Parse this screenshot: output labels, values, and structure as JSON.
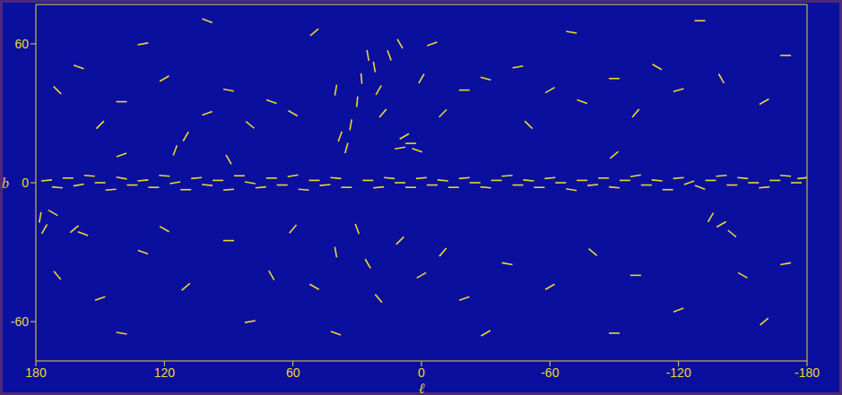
{
  "chart_data": {
    "type": "scatter",
    "x_label": "ℓ",
    "y_label": "b",
    "color": "#e8d830",
    "marker": "segment",
    "grid": false,
    "xlim": [
      180,
      -180
    ],
    "xticks": [
      180,
      120,
      60,
      0,
      -60,
      -120,
      -180
    ],
    "ylim": [
      -77,
      77
    ],
    "yticks": [
      -60,
      0,
      60
    ],
    "points": [
      {
        "x": 175,
        "y": 1,
        "angle": 5
      },
      {
        "x": 170,
        "y": -2,
        "angle": -5
      },
      {
        "x": 165,
        "y": 2,
        "angle": 0
      },
      {
        "x": 160,
        "y": -1,
        "angle": 10
      },
      {
        "x": 155,
        "y": 3,
        "angle": -5
      },
      {
        "x": 150,
        "y": 0,
        "angle": 0
      },
      {
        "x": 145,
        "y": -3,
        "angle": 5
      },
      {
        "x": 140,
        "y": 2,
        "angle": -10
      },
      {
        "x": 135,
        "y": -1,
        "angle": 0
      },
      {
        "x": 130,
        "y": 1,
        "angle": 5
      },
      {
        "x": 125,
        "y": -2,
        "angle": 0
      },
      {
        "x": 120,
        "y": 3,
        "angle": -5
      },
      {
        "x": 115,
        "y": 0,
        "angle": 10
      },
      {
        "x": 110,
        "y": -3,
        "angle": 0
      },
      {
        "x": 105,
        "y": 2,
        "angle": 5
      },
      {
        "x": 100,
        "y": -1,
        "angle": -5
      },
      {
        "x": 95,
        "y": 1,
        "angle": 0
      },
      {
        "x": 90,
        "y": -3,
        "angle": 5
      },
      {
        "x": 85,
        "y": 3,
        "angle": 0
      },
      {
        "x": 80,
        "y": 0,
        "angle": -10
      },
      {
        "x": 75,
        "y": -2,
        "angle": 5
      },
      {
        "x": 70,
        "y": 2,
        "angle": 0
      },
      {
        "x": 65,
        "y": -1,
        "angle": 0
      },
      {
        "x": 60,
        "y": 3,
        "angle": 10
      },
      {
        "x": 55,
        "y": -3,
        "angle": -5
      },
      {
        "x": 50,
        "y": 1,
        "angle": 0
      },
      {
        "x": 45,
        "y": -1,
        "angle": 5
      },
      {
        "x": 40,
        "y": 2,
        "angle": -5
      },
      {
        "x": 35,
        "y": -2,
        "angle": 0
      },
      {
        "x": 25,
        "y": 1,
        "angle": 0
      },
      {
        "x": 20,
        "y": -2,
        "angle": 5
      },
      {
        "x": 15,
        "y": 2,
        "angle": -5
      },
      {
        "x": 10,
        "y": 0,
        "angle": 0
      },
      {
        "x": 5,
        "y": -2,
        "angle": 0
      },
      {
        "x": 0,
        "y": 2,
        "angle": 5
      },
      {
        "x": -5,
        "y": -1,
        "angle": 0
      },
      {
        "x": -10,
        "y": 1,
        "angle": -5
      },
      {
        "x": -15,
        "y": -2,
        "angle": 0
      },
      {
        "x": -20,
        "y": 2,
        "angle": 5
      },
      {
        "x": -25,
        "y": 0,
        "angle": 0
      },
      {
        "x": -30,
        "y": -2,
        "angle": -5
      },
      {
        "x": -35,
        "y": 1,
        "angle": 0
      },
      {
        "x": -40,
        "y": 3,
        "angle": 5
      },
      {
        "x": -45,
        "y": -1,
        "angle": 0
      },
      {
        "x": -50,
        "y": 1,
        "angle": -5
      },
      {
        "x": -55,
        "y": -2,
        "angle": 0
      },
      {
        "x": -60,
        "y": 2,
        "angle": 5
      },
      {
        "x": -65,
        "y": 0,
        "angle": 0
      },
      {
        "x": -70,
        "y": -3,
        "angle": -10
      },
      {
        "x": -75,
        "y": 1,
        "angle": 0
      },
      {
        "x": -80,
        "y": -1,
        "angle": 5
      },
      {
        "x": -85,
        "y": 2,
        "angle": 0
      },
      {
        "x": -90,
        "y": -2,
        "angle": -5
      },
      {
        "x": -95,
        "y": 1,
        "angle": 0
      },
      {
        "x": -100,
        "y": 3,
        "angle": 10
      },
      {
        "x": -105,
        "y": -1,
        "angle": 0
      },
      {
        "x": -110,
        "y": 1,
        "angle": -5
      },
      {
        "x": -115,
        "y": -3,
        "angle": 0
      },
      {
        "x": -120,
        "y": 2,
        "angle": 5
      },
      {
        "x": -125,
        "y": 0,
        "angle": 20
      },
      {
        "x": -130,
        "y": -2,
        "angle": -20
      },
      {
        "x": -135,
        "y": 1,
        "angle": 0
      },
      {
        "x": -140,
        "y": 3,
        "angle": 5
      },
      {
        "x": -145,
        "y": -1,
        "angle": 0
      },
      {
        "x": -150,
        "y": 2,
        "angle": -5
      },
      {
        "x": -155,
        "y": 0,
        "angle": 0
      },
      {
        "x": -160,
        "y": -2,
        "angle": 5
      },
      {
        "x": -165,
        "y": 1,
        "angle": 0
      },
      {
        "x": -170,
        "y": 3,
        "angle": -5
      },
      {
        "x": -175,
        "y": 0,
        "angle": 0
      },
      {
        "x": -178,
        "y": 2,
        "angle": 5
      },
      {
        "x": 178,
        "y": -15,
        "angle": 80
      },
      {
        "x": 176,
        "y": -20,
        "angle": 60
      },
      {
        "x": 172,
        "y": -13,
        "angle": -30
      },
      {
        "x": 162,
        "y": -20,
        "angle": 40
      },
      {
        "x": 158,
        "y": -22,
        "angle": -20
      },
      {
        "x": -140,
        "y": -18,
        "angle": 30
      },
      {
        "x": -145,
        "y": -22,
        "angle": -40
      },
      {
        "x": -135,
        "y": -15,
        "angle": 60
      },
      {
        "x": 5,
        "y": 17,
        "angle": 0
      },
      {
        "x": 8,
        "y": 20,
        "angle": 30
      },
      {
        "x": 2,
        "y": 14,
        "angle": -20
      },
      {
        "x": 10,
        "y": 15,
        "angle": 10
      },
      {
        "x": 90,
        "y": 10,
        "angle": -60
      },
      {
        "x": 115,
        "y": 14,
        "angle": 70
      },
      {
        "x": 140,
        "y": 12,
        "angle": 20
      },
      {
        "x": -90,
        "y": 12,
        "angle": 40
      },
      {
        "x": 35,
        "y": 15,
        "angle": 75
      },
      {
        "x": 33,
        "y": 25,
        "angle": 80
      },
      {
        "x": 30,
        "y": 35,
        "angle": 85
      },
      {
        "x": 28,
        "y": 45,
        "angle": 95
      },
      {
        "x": 25,
        "y": 55,
        "angle": 100
      },
      {
        "x": 38,
        "y": 20,
        "angle": 70
      },
      {
        "x": 20,
        "y": 40,
        "angle": 60
      },
      {
        "x": 18,
        "y": 30,
        "angle": 50
      },
      {
        "x": 40,
        "y": 40,
        "angle": 80
      },
      {
        "x": 22,
        "y": 50,
        "angle": 100
      },
      {
        "x": 15,
        "y": 55,
        "angle": 110
      },
      {
        "x": 10,
        "y": 60,
        "angle": -60
      },
      {
        "x": 60,
        "y": 30,
        "angle": -30
      },
      {
        "x": 70,
        "y": 35,
        "angle": -20
      },
      {
        "x": 80,
        "y": 25,
        "angle": -40
      },
      {
        "x": 90,
        "y": 40,
        "angle": -10
      },
      {
        "x": 100,
        "y": 30,
        "angle": 20
      },
      {
        "x": 120,
        "y": 45,
        "angle": 30
      },
      {
        "x": 140,
        "y": 35,
        "angle": 0
      },
      {
        "x": 160,
        "y": 50,
        "angle": -20
      },
      {
        "x": 150,
        "y": 25,
        "angle": 45
      },
      {
        "x": 110,
        "y": 20,
        "angle": 60
      },
      {
        "x": 130,
        "y": 60,
        "angle": 10
      },
      {
        "x": 170,
        "y": 40,
        "angle": -45
      },
      {
        "x": -20,
        "y": 40,
        "angle": 0
      },
      {
        "x": -30,
        "y": 45,
        "angle": -15
      },
      {
        "x": -45,
        "y": 50,
        "angle": 10
      },
      {
        "x": -60,
        "y": 40,
        "angle": 30
      },
      {
        "x": -75,
        "y": 35,
        "angle": -20
      },
      {
        "x": -90,
        "y": 45,
        "angle": 0
      },
      {
        "x": -100,
        "y": 30,
        "angle": 50
      },
      {
        "x": -110,
        "y": 50,
        "angle": -30
      },
      {
        "x": -120,
        "y": 40,
        "angle": 15
      },
      {
        "x": -140,
        "y": 45,
        "angle": -60
      },
      {
        "x": -160,
        "y": 35,
        "angle": 30
      },
      {
        "x": -170,
        "y": 55,
        "angle": 0
      },
      {
        "x": -50,
        "y": 25,
        "angle": -45
      },
      {
        "x": -10,
        "y": 30,
        "angle": 45
      },
      {
        "x": -5,
        "y": 60,
        "angle": 20
      },
      {
        "x": -70,
        "y": 65,
        "angle": -10
      },
      {
        "x": 50,
        "y": 65,
        "angle": 40
      },
      {
        "x": -130,
        "y": 70,
        "angle": 0
      },
      {
        "x": 100,
        "y": 70,
        "angle": -20
      },
      {
        "x": 0,
        "y": 45,
        "angle": 60
      },
      {
        "x": 30,
        "y": -20,
        "angle": -70
      },
      {
        "x": 25,
        "y": -35,
        "angle": -60
      },
      {
        "x": 20,
        "y": -50,
        "angle": -50
      },
      {
        "x": 40,
        "y": -30,
        "angle": -80
      },
      {
        "x": 50,
        "y": -45,
        "angle": -30
      },
      {
        "x": 10,
        "y": -25,
        "angle": 45
      },
      {
        "x": 0,
        "y": -40,
        "angle": 30
      },
      {
        "x": -10,
        "y": -30,
        "angle": 50
      },
      {
        "x": -20,
        "y": -50,
        "angle": 20
      },
      {
        "x": -40,
        "y": -35,
        "angle": -10
      },
      {
        "x": -60,
        "y": -45,
        "angle": 30
      },
      {
        "x": -80,
        "y": -30,
        "angle": -40
      },
      {
        "x": -100,
        "y": -40,
        "angle": 0
      },
      {
        "x": -120,
        "y": -55,
        "angle": 20
      },
      {
        "x": -150,
        "y": -40,
        "angle": -30
      },
      {
        "x": -170,
        "y": -35,
        "angle": 10
      },
      {
        "x": 170,
        "y": -40,
        "angle": -50
      },
      {
        "x": 150,
        "y": -50,
        "angle": 20
      },
      {
        "x": 130,
        "y": -30,
        "angle": -20
      },
      {
        "x": 110,
        "y": -45,
        "angle": 40
      },
      {
        "x": 90,
        "y": -25,
        "angle": 0
      },
      {
        "x": 70,
        "y": -40,
        "angle": -60
      },
      {
        "x": 60,
        "y": -20,
        "angle": 50
      },
      {
        "x": 80,
        "y": -60,
        "angle": 10
      },
      {
        "x": 40,
        "y": -65,
        "angle": -20
      },
      {
        "x": -30,
        "y": -65,
        "angle": 30
      },
      {
        "x": -90,
        "y": -65,
        "angle": 0
      },
      {
        "x": 140,
        "y": -65,
        "angle": -10
      },
      {
        "x": -160,
        "y": -60,
        "angle": 40
      },
      {
        "x": 120,
        "y": -20,
        "angle": -30
      }
    ]
  }
}
